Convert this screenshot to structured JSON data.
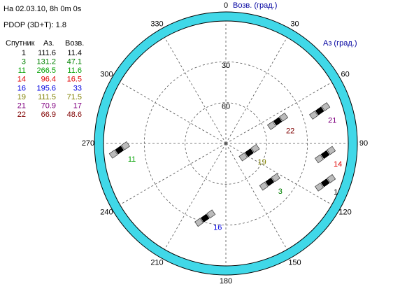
{
  "header": {
    "timestamp": "На 02.03.10, 8h 0m 0s",
    "pdop": "PDOP (3D+T): 1.8"
  },
  "table": {
    "columns": [
      "Спутник",
      "Аз.",
      "Возв."
    ]
  },
  "chart_data": {
    "type": "skyplot",
    "azimuth_label": "Аз (град.)",
    "elevation_label": "Возв. (град.)",
    "azimuth_ticks": [
      0,
      30,
      60,
      90,
      120,
      150,
      180,
      210,
      240,
      270,
      300,
      330
    ],
    "elevation_lim": [
      0,
      90
    ],
    "elevation_ticks": [
      30,
      60
    ],
    "grid": true,
    "series": [
      {
        "name": "1",
        "color": "#000000",
        "azimuth": 111.6,
        "elevation": 11.4
      },
      {
        "name": "3",
        "color": "#008000",
        "azimuth": 131.2,
        "elevation": 47.1
      },
      {
        "name": "11",
        "color": "#00a000",
        "azimuth": 266.5,
        "elevation": 11.6
      },
      {
        "name": "14",
        "color": "#e00000",
        "azimuth": 96.4,
        "elevation": 16.5
      },
      {
        "name": "16",
        "color": "#0000e0",
        "azimuth": 195.6,
        "elevation": 33.0
      },
      {
        "name": "19",
        "color": "#808000",
        "azimuth": 111.5,
        "elevation": 71.5
      },
      {
        "name": "21",
        "color": "#800080",
        "azimuth": 70.9,
        "elevation": 17.0
      },
      {
        "name": "22",
        "color": "#800000",
        "azimuth": 66.9,
        "elevation": 48.6
      }
    ]
  }
}
